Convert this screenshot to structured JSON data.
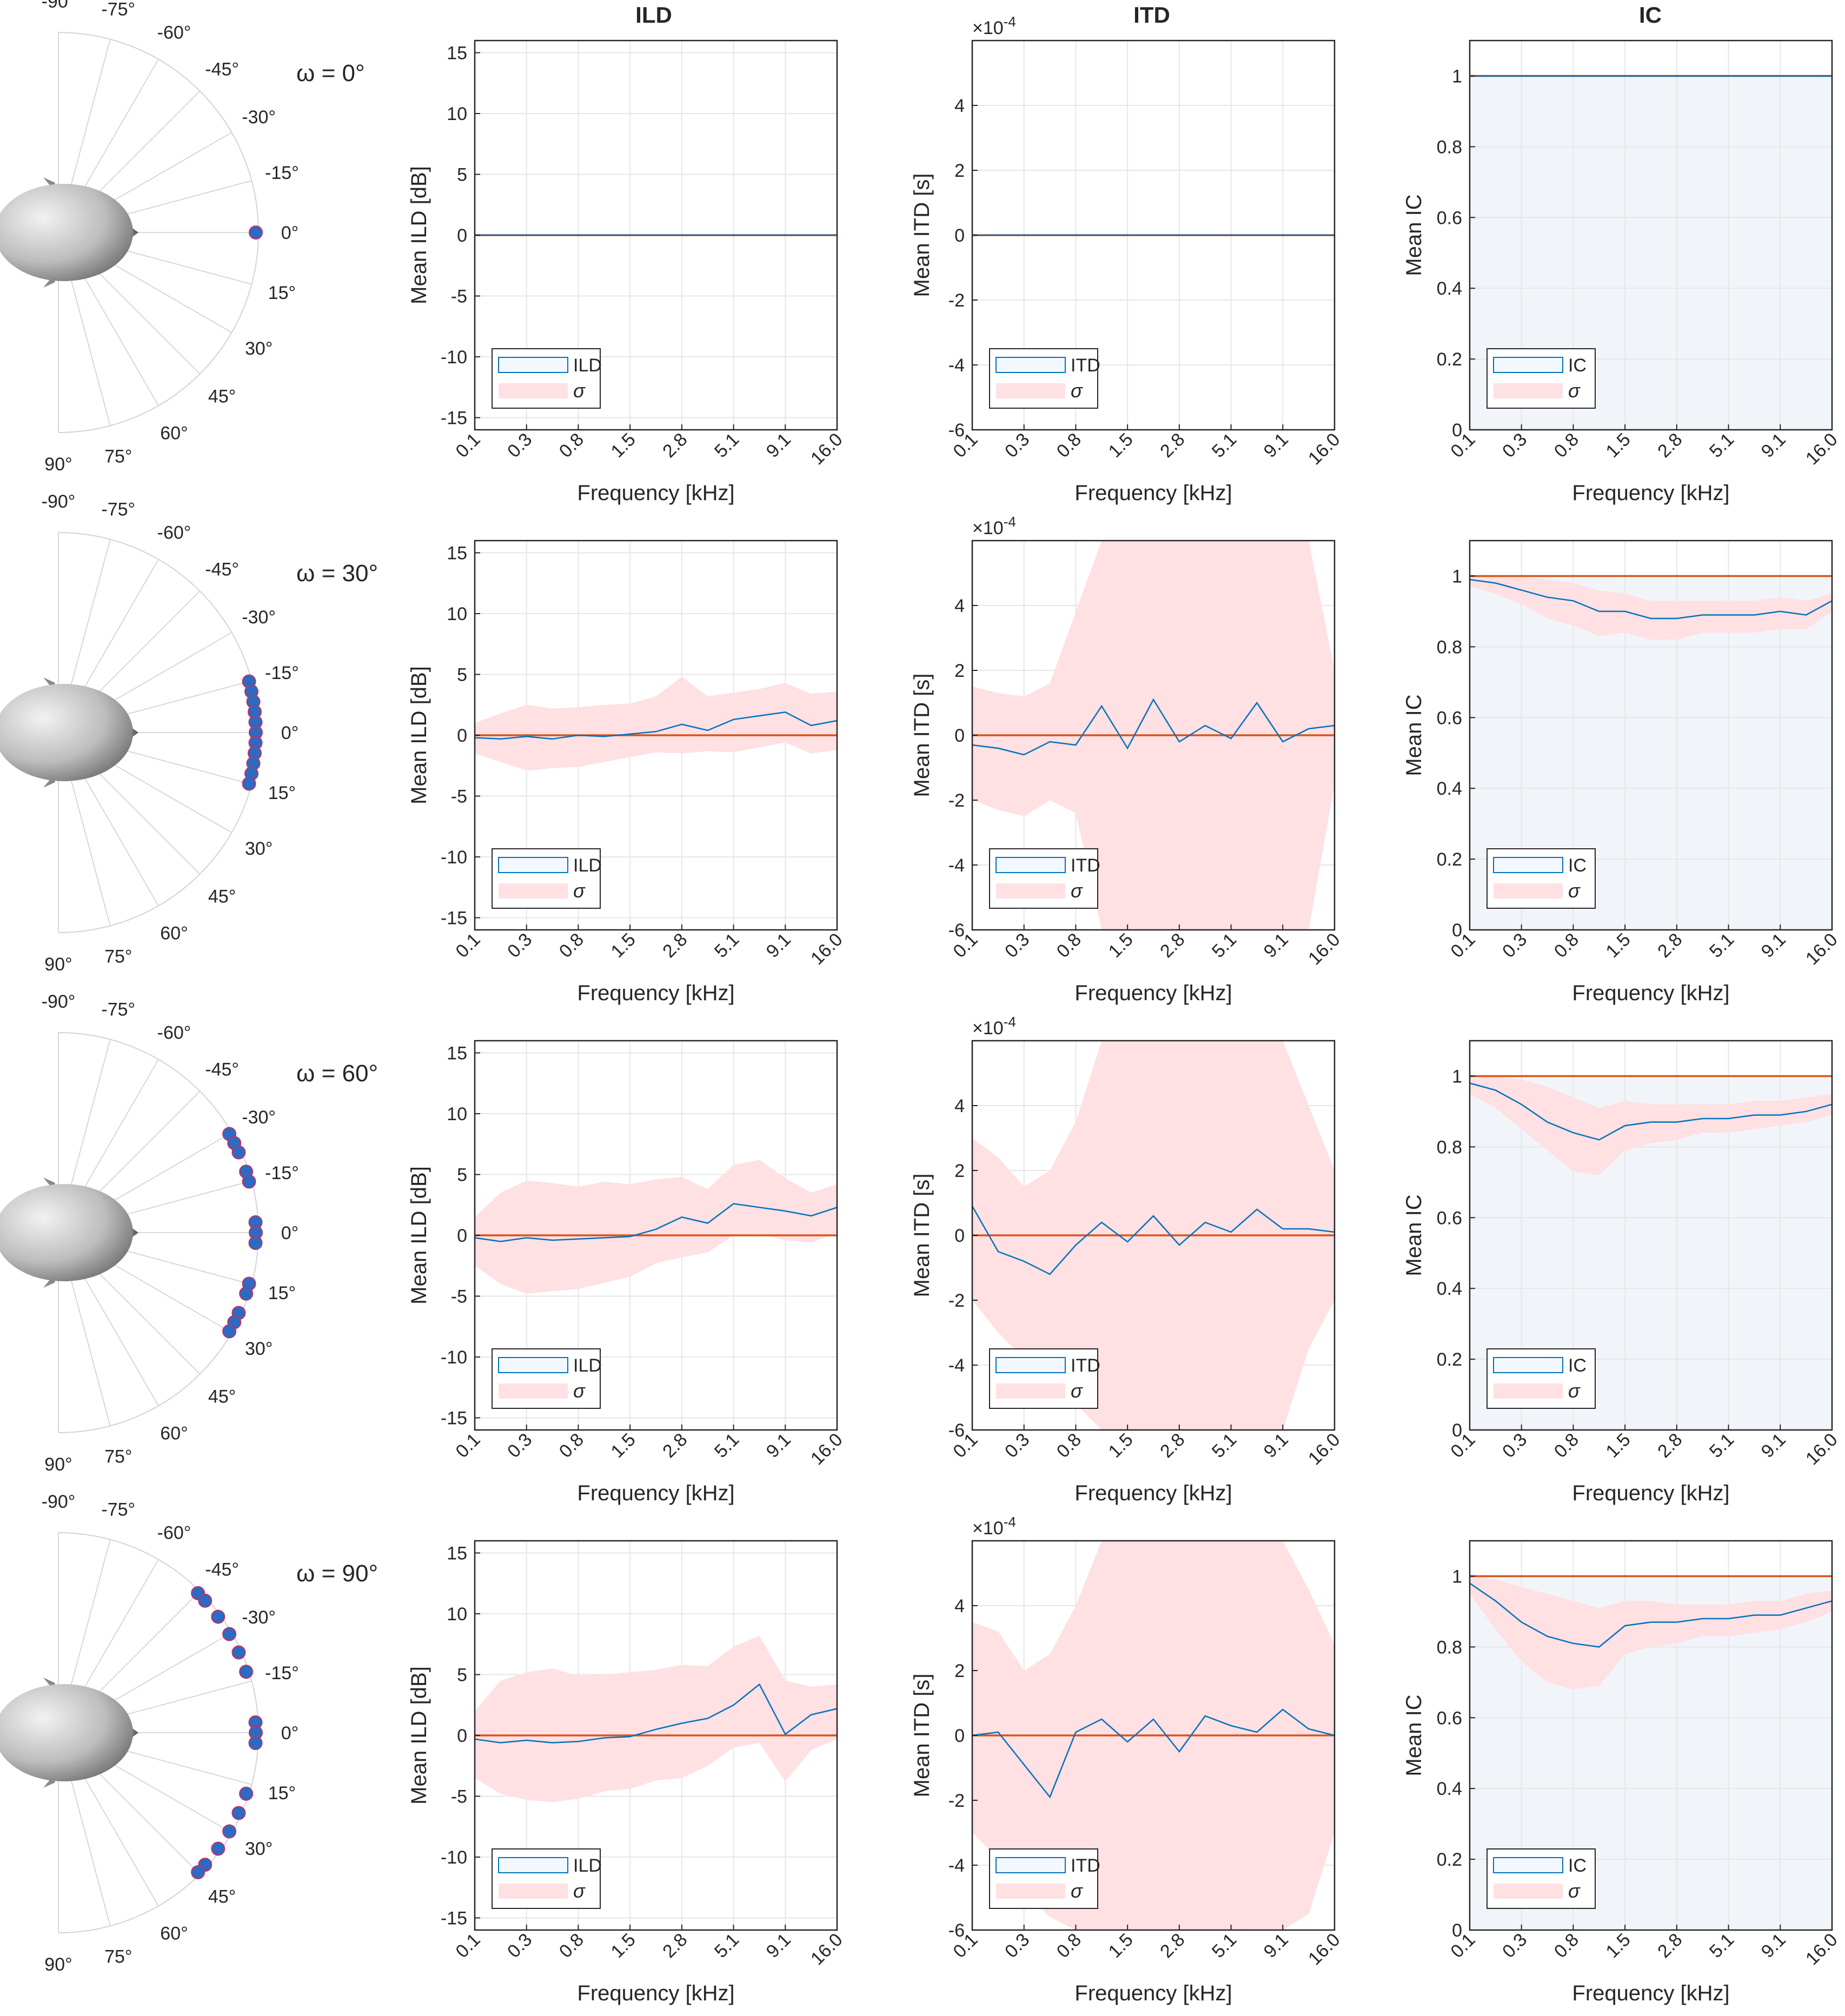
{
  "column_titles": [
    "ILD",
    "ITD",
    "IC"
  ],
  "row_labels": [
    "ω = 0°",
    "ω = 30°",
    "ω = 60°",
    "ω = 90°"
  ],
  "polar_labels": [
    "-90°",
    "-75°",
    "-60°",
    "-45°",
    "-30°",
    "-15°",
    "0°",
    "15°",
    "30°",
    "45°",
    "60°",
    "75°",
    "90°"
  ],
  "colors": {
    "mean_line": "#0072bd",
    "reference_line": "#d95319",
    "sigma_band": "#ffe0e3",
    "ic_fill": "#f1f5fa",
    "marker_fill": "#2b6bc2",
    "marker_edge": "#c0306a",
    "grid": "#e6e6e6"
  },
  "chart_data": [
    {
      "type": "line",
      "panel": "ILD",
      "title": "ILD",
      "ylabel": "Mean ILD [dB]",
      "xlabel": "Frequency [kHz]",
      "x_ticks": [
        "0.1",
        "0.3",
        "0.8",
        "1.5",
        "2.8",
        "5.1",
        "9.1",
        "16.0"
      ],
      "y_ticks": [
        15,
        10,
        5,
        0,
        -5,
        -10,
        -15
      ],
      "ylim": [
        -16,
        16
      ],
      "xlim": [
        0,
        7
      ],
      "legend": [
        "ILD",
        "σ"
      ],
      "legend_position": "bottom-left",
      "grid": true,
      "reference_value": 0,
      "x_points": [
        0,
        0.5,
        1,
        1.5,
        2,
        2.5,
        3,
        3.5,
        4,
        4.5,
        5,
        5.5,
        6,
        6.5,
        7
      ],
      "rows": [
        {
          "omega": "ω = 0°",
          "mean": [
            0,
            0,
            0,
            0,
            0,
            0,
            0,
            0,
            0,
            0,
            0,
            0,
            0,
            0,
            0
          ],
          "sigma_upper": [
            0,
            0,
            0,
            0,
            0,
            0,
            0,
            0,
            0,
            0,
            0,
            0,
            0,
            0,
            0
          ],
          "sigma_lower": [
            0,
            0,
            0,
            0,
            0,
            0,
            0,
            0,
            0,
            0,
            0,
            0,
            0,
            0,
            0
          ]
        },
        {
          "omega": "ω = 30°",
          "mean": [
            -0.2,
            -0.3,
            -0.1,
            -0.3,
            0,
            -0.1,
            0.1,
            0.3,
            0.9,
            0.4,
            1.3,
            1.6,
            1.9,
            0.8,
            1.2
          ],
          "sigma_upper": [
            1.0,
            1.8,
            2.5,
            2.2,
            2.3,
            2.5,
            2.6,
            3.2,
            4.8,
            3.2,
            3.5,
            3.8,
            4.3,
            3.4,
            3.6
          ],
          "sigma_lower": [
            -1.5,
            -2.2,
            -2.9,
            -2.7,
            -2.6,
            -2.2,
            -1.8,
            -1.4,
            -1.5,
            -1.3,
            -1.4,
            -1.0,
            -0.6,
            -1.5,
            -1.2
          ]
        },
        {
          "omega": "ω = 60°",
          "mean": [
            -0.2,
            -0.5,
            -0.2,
            -0.4,
            -0.3,
            -0.2,
            -0.1,
            0.5,
            1.5,
            1.0,
            2.6,
            2.3,
            2.0,
            1.6,
            2.3
          ],
          "sigma_upper": [
            1.5,
            3.5,
            4.5,
            4.3,
            4.0,
            4.4,
            4.2,
            4.6,
            4.8,
            3.8,
            5.8,
            6.2,
            4.7,
            3.5,
            4.2
          ],
          "sigma_lower": [
            -2.5,
            -4.0,
            -4.8,
            -4.6,
            -4.4,
            -3.9,
            -3.4,
            -2.3,
            -1.8,
            -1.4,
            0.0,
            0.1,
            -0.4,
            -0.6,
            0.2
          ]
        },
        {
          "omega": "ω = 90°",
          "mean": [
            -0.3,
            -0.6,
            -0.4,
            -0.6,
            -0.5,
            -0.2,
            -0.1,
            0.5,
            1.0,
            1.4,
            2.5,
            4.2,
            0.1,
            1.7,
            2.2
          ],
          "sigma_upper": [
            2.0,
            4.5,
            5.2,
            5.5,
            4.9,
            5.0,
            5.2,
            5.4,
            5.8,
            5.7,
            7.3,
            8.2,
            4.5,
            4.0,
            4.2
          ],
          "sigma_lower": [
            -3.5,
            -4.8,
            -5.3,
            -5.5,
            -5.2,
            -4.6,
            -4.4,
            -3.7,
            -3.5,
            -2.5,
            -1.0,
            -0.6,
            -3.8,
            -1.2,
            -0.3
          ]
        }
      ]
    },
    {
      "type": "line",
      "panel": "ITD",
      "title": "ITD",
      "ylabel": "Mean ITD [s]",
      "xlabel": "Frequency [kHz]",
      "exponent_label": "×10",
      "exponent_power": "-4",
      "x_ticks": [
        "0.1",
        "0.3",
        "0.8",
        "1.5",
        "2.8",
        "5.1",
        "9.1",
        "16.0"
      ],
      "y_ticks": [
        4,
        2,
        0,
        -2,
        -4,
        -6
      ],
      "ylim": [
        -6,
        6
      ],
      "xlim": [
        0,
        7
      ],
      "legend": [
        "ITD",
        "σ"
      ],
      "legend_position": "bottom-left",
      "grid": true,
      "reference_value": 0,
      "x_points": [
        0,
        0.5,
        1,
        1.5,
        2,
        2.5,
        3,
        3.5,
        4,
        4.5,
        5,
        5.5,
        6,
        6.5,
        7
      ],
      "rows": [
        {
          "omega": "ω = 0°",
          "mean": [
            0,
            0,
            0,
            0,
            0,
            0,
            0,
            0,
            0,
            0,
            0,
            0,
            0,
            0,
            0
          ],
          "sigma_upper": [
            0,
            0,
            0,
            0,
            0,
            0,
            0,
            0,
            0,
            0,
            0,
            0,
            0,
            0,
            0
          ],
          "sigma_lower": [
            0,
            0,
            0,
            0,
            0,
            0,
            0,
            0,
            0,
            0,
            0,
            0,
            0,
            0,
            0
          ]
        },
        {
          "omega": "ω = 30°",
          "mean": [
            -0.3,
            -0.4,
            -0.6,
            -0.2,
            -0.3,
            0.9,
            -0.4,
            1.1,
            -0.2,
            0.3,
            -0.1,
            1.0,
            -0.2,
            0.2,
            0.3
          ],
          "sigma_upper": [
            1.5,
            1.3,
            1.2,
            1.6,
            3.8,
            6.0,
            6.0,
            6.0,
            6.0,
            6.0,
            6.0,
            6.0,
            6.0,
            6.0,
            2.0
          ],
          "sigma_lower": [
            -2.0,
            -2.3,
            -2.5,
            -2.0,
            -2.4,
            -6.0,
            -6.0,
            -6.0,
            -6.0,
            -6.0,
            -6.0,
            -6.0,
            -6.0,
            -6.0,
            -1.5
          ]
        },
        {
          "omega": "ω = 60°",
          "mean": [
            0.9,
            -0.5,
            -0.8,
            -1.2,
            -0.3,
            0.4,
            -0.2,
            0.6,
            -0.3,
            0.4,
            0.1,
            0.8,
            0.2,
            0.2,
            0.1
          ],
          "sigma_upper": [
            3.0,
            2.4,
            1.5,
            2.0,
            3.5,
            6.0,
            6.0,
            6.0,
            6.0,
            6.0,
            6.0,
            6.0,
            6.0,
            4.0,
            2.0
          ],
          "sigma_lower": [
            -2.0,
            -3.0,
            -3.8,
            -4.8,
            -5.2,
            -6.0,
            -6.0,
            -6.0,
            -6.0,
            -6.0,
            -6.0,
            -6.0,
            -6.0,
            -3.5,
            -2.0
          ]
        },
        {
          "omega": "ω = 90°",
          "mean": [
            0,
            0.1,
            -0.9,
            -1.9,
            0.1,
            0.5,
            -0.2,
            0.5,
            -0.5,
            0.6,
            0.3,
            0.1,
            0.8,
            0.2,
            0.0
          ],
          "sigma_upper": [
            3.5,
            3.2,
            2.0,
            2.5,
            4.0,
            6.0,
            6.0,
            6.0,
            6.0,
            6.0,
            6.0,
            6.0,
            6.0,
            4.5,
            2.8
          ],
          "sigma_lower": [
            -3.0,
            -3.8,
            -4.8,
            -5.6,
            -6.0,
            -6.0,
            -6.0,
            -6.0,
            -6.0,
            -6.0,
            -6.0,
            -6.0,
            -6.0,
            -5.5,
            -3.0
          ]
        }
      ]
    },
    {
      "type": "area",
      "panel": "IC",
      "title": "IC",
      "ylabel": "Mean IC",
      "xlabel": "Frequency [kHz]",
      "x_ticks": [
        "0.1",
        "0.3",
        "0.8",
        "1.5",
        "2.8",
        "5.1",
        "9.1",
        "16.0"
      ],
      "y_ticks": [
        1,
        0.8,
        0.6,
        0.4,
        0.2,
        0
      ],
      "ylim": [
        0,
        1.1
      ],
      "xlim": [
        0,
        7
      ],
      "legend": [
        "IC",
        "σ"
      ],
      "legend_position": "bottom-left",
      "grid": true,
      "reference_value": 1,
      "x_points": [
        0,
        0.5,
        1,
        1.5,
        2,
        2.5,
        3,
        3.5,
        4,
        4.5,
        5,
        5.5,
        6,
        6.5,
        7
      ],
      "rows": [
        {
          "omega": "ω = 0°",
          "mean": [
            1,
            1,
            1,
            1,
            1,
            1,
            1,
            1,
            1,
            1,
            1,
            1,
            1,
            1,
            1
          ],
          "sigma_upper": [
            1,
            1,
            1,
            1,
            1,
            1,
            1,
            1,
            1,
            1,
            1,
            1,
            1,
            1,
            1
          ],
          "sigma_lower": [
            1,
            1,
            1,
            1,
            1,
            1,
            1,
            1,
            1,
            1,
            1,
            1,
            1,
            1,
            1
          ]
        },
        {
          "omega": "ω = 30°",
          "mean": [
            0.99,
            0.98,
            0.96,
            0.94,
            0.93,
            0.9,
            0.9,
            0.88,
            0.88,
            0.89,
            0.89,
            0.89,
            0.9,
            0.89,
            0.93
          ],
          "sigma_upper": [
            1.0,
            1.0,
            1.0,
            0.99,
            0.98,
            0.96,
            0.95,
            0.93,
            0.93,
            0.93,
            0.93,
            0.93,
            0.94,
            0.93,
            0.95
          ],
          "sigma_lower": [
            0.97,
            0.95,
            0.92,
            0.88,
            0.86,
            0.83,
            0.84,
            0.82,
            0.82,
            0.84,
            0.84,
            0.84,
            0.85,
            0.85,
            0.9
          ]
        },
        {
          "omega": "ω = 60°",
          "mean": [
            0.98,
            0.96,
            0.92,
            0.87,
            0.84,
            0.82,
            0.86,
            0.87,
            0.87,
            0.88,
            0.88,
            0.89,
            0.89,
            0.9,
            0.92
          ],
          "sigma_upper": [
            1.0,
            1.0,
            0.99,
            0.97,
            0.94,
            0.91,
            0.93,
            0.92,
            0.92,
            0.92,
            0.92,
            0.93,
            0.93,
            0.94,
            0.95
          ],
          "sigma_lower": [
            0.95,
            0.91,
            0.85,
            0.79,
            0.73,
            0.72,
            0.79,
            0.81,
            0.82,
            0.84,
            0.84,
            0.85,
            0.86,
            0.87,
            0.89
          ]
        },
        {
          "omega": "ω = 90°",
          "mean": [
            0.98,
            0.93,
            0.87,
            0.83,
            0.81,
            0.8,
            0.86,
            0.87,
            0.87,
            0.88,
            0.88,
            0.89,
            0.89,
            0.91,
            0.93
          ],
          "sigma_upper": [
            1.0,
            0.99,
            0.97,
            0.95,
            0.93,
            0.91,
            0.93,
            0.93,
            0.92,
            0.92,
            0.92,
            0.93,
            0.93,
            0.95,
            0.96
          ],
          "sigma_lower": [
            0.95,
            0.85,
            0.76,
            0.7,
            0.68,
            0.69,
            0.78,
            0.8,
            0.81,
            0.83,
            0.83,
            0.84,
            0.85,
            0.87,
            0.9
          ]
        }
      ]
    },
    {
      "type": "scatter",
      "panel": "polar-source-positions",
      "axis": "azimuth (deg)",
      "rows": [
        {
          "omega": "ω = 0°",
          "angles": [
            0
          ]
        },
        {
          "omega": "ω = 30°",
          "angles": [
            -15,
            -12,
            -9,
            -6,
            -3,
            0,
            3,
            6,
            9,
            12,
            15
          ]
        },
        {
          "omega": "ω = 60°",
          "angles": [
            -30,
            -27,
            -24,
            -18,
            -15,
            -3,
            0,
            3,
            15,
            18,
            24,
            27,
            30
          ]
        },
        {
          "omega": "ω = 90°",
          "angles": [
            -45,
            -42,
            -36,
            -30,
            -24,
            -18,
            -3,
            0,
            3,
            18,
            24,
            30,
            36,
            42,
            45
          ]
        }
      ]
    }
  ]
}
